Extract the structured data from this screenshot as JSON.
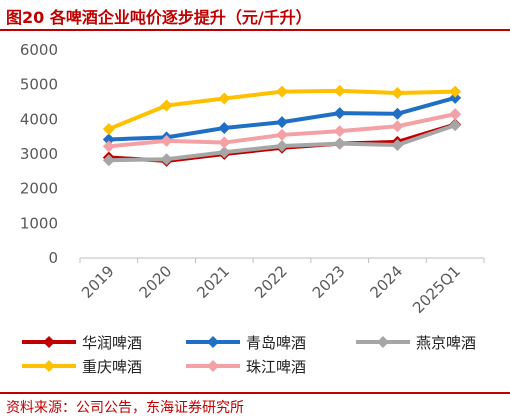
{
  "header": {
    "title": "图20  各啤酒企业吨价逐步提升（元/千升）"
  },
  "footer": {
    "source": "资料来源：公司公告，东海证券研究所"
  },
  "chart_data": {
    "type": "line",
    "title": "",
    "xlabel": "",
    "ylabel": "",
    "x": [
      "2019",
      "2020",
      "2021",
      "2022",
      "2023",
      "2024",
      "2025Q1"
    ],
    "ylim": [
      0,
      6000
    ],
    "yticks": [
      0,
      1000,
      2000,
      3000,
      4000,
      5000,
      6000
    ],
    "grid": false,
    "legend_position": "bottom",
    "series": [
      {
        "name": "华润啤酒",
        "color": "#c00000",
        "marker": "diamond",
        "values": [
          2900,
          2800,
          3000,
          3180,
          3300,
          3350,
          3850
        ]
      },
      {
        "name": "青岛啤酒",
        "color": "#1f6fc5",
        "marker": "diamond",
        "values": [
          3420,
          3480,
          3750,
          3920,
          4180,
          4160,
          4620
        ]
      },
      {
        "name": "燕京啤酒",
        "color": "#a6a6a6",
        "marker": "diamond",
        "values": [
          2820,
          2850,
          3050,
          3230,
          3300,
          3260,
          3830
        ]
      },
      {
        "name": "重庆啤酒",
        "color": "#ffc000",
        "marker": "diamond",
        "values": [
          3720,
          4400,
          4600,
          4800,
          4820,
          4760,
          4800
        ]
      },
      {
        "name": "珠江啤酒",
        "color": "#f4a1a6",
        "marker": "diamond",
        "values": [
          3220,
          3380,
          3330,
          3550,
          3660,
          3800,
          4150
        ]
      }
    ]
  }
}
